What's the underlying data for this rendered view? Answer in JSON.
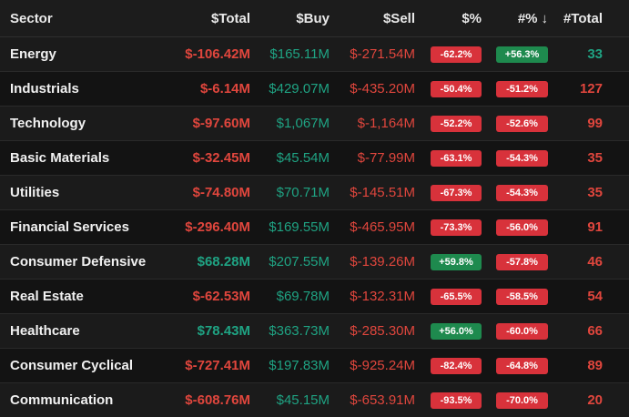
{
  "colors": {
    "negative": "#e0463d",
    "positive": "#1fa383",
    "pill_negative": "#d8323b",
    "pill_positive": "#1e8a4e",
    "header_bg": "#1c1c1c",
    "row_bg": "#1b1b1b",
    "page_bg": "#131313"
  },
  "header": {
    "sector": "Sector",
    "total": "$Total",
    "buy": "$Buy",
    "sell": "$Sell",
    "pct": "$%",
    "count_pct": "#%",
    "sort_icon": "↓",
    "count": "#Total"
  },
  "rows": [
    {
      "sector": "Energy",
      "total": "$-106.42M",
      "total_sign": "neg",
      "buy": "$165.11M",
      "sell": "$-271.54M",
      "pct": "-62.2%",
      "pct_sign": "neg",
      "count_pct": "+56.3%",
      "count_pct_sign": "pos",
      "count": "33",
      "count_sign": "pos"
    },
    {
      "sector": "Industrials",
      "total": "$-6.14M",
      "total_sign": "neg",
      "buy": "$429.07M",
      "sell": "$-435.20M",
      "pct": "-50.4%",
      "pct_sign": "neg",
      "count_pct": "-51.2%",
      "count_pct_sign": "neg",
      "count": "127",
      "count_sign": "neg"
    },
    {
      "sector": "Technology",
      "total": "$-97.60M",
      "total_sign": "neg",
      "buy": "$1,067M",
      "sell": "$-1,164M",
      "pct": "-52.2%",
      "pct_sign": "neg",
      "count_pct": "-52.6%",
      "count_pct_sign": "neg",
      "count": "99",
      "count_sign": "neg"
    },
    {
      "sector": "Basic Materials",
      "total": "$-32.45M",
      "total_sign": "neg",
      "buy": "$45.54M",
      "sell": "$-77.99M",
      "pct": "-63.1%",
      "pct_sign": "neg",
      "count_pct": "-54.3%",
      "count_pct_sign": "neg",
      "count": "35",
      "count_sign": "neg"
    },
    {
      "sector": "Utilities",
      "total": "$-74.80M",
      "total_sign": "neg",
      "buy": "$70.71M",
      "sell": "$-145.51M",
      "pct": "-67.3%",
      "pct_sign": "neg",
      "count_pct": "-54.3%",
      "count_pct_sign": "neg",
      "count": "35",
      "count_sign": "neg"
    },
    {
      "sector": "Financial Services",
      "total": "$-296.40M",
      "total_sign": "neg",
      "buy": "$169.55M",
      "sell": "$-465.95M",
      "pct": "-73.3%",
      "pct_sign": "neg",
      "count_pct": "-56.0%",
      "count_pct_sign": "neg",
      "count": "91",
      "count_sign": "neg"
    },
    {
      "sector": "Consumer Defensive",
      "total": "$68.28M",
      "total_sign": "pos",
      "buy": "$207.55M",
      "sell": "$-139.26M",
      "pct": "+59.8%",
      "pct_sign": "pos",
      "count_pct": "-57.8%",
      "count_pct_sign": "neg",
      "count": "46",
      "count_sign": "neg"
    },
    {
      "sector": "Real Estate",
      "total": "$-62.53M",
      "total_sign": "neg",
      "buy": "$69.78M",
      "sell": "$-132.31M",
      "pct": "-65.5%",
      "pct_sign": "neg",
      "count_pct": "-58.5%",
      "count_pct_sign": "neg",
      "count": "54",
      "count_sign": "neg"
    },
    {
      "sector": "Healthcare",
      "total": "$78.43M",
      "total_sign": "pos",
      "buy": "$363.73M",
      "sell": "$-285.30M",
      "pct": "+56.0%",
      "pct_sign": "pos",
      "count_pct": "-60.0%",
      "count_pct_sign": "neg",
      "count": "66",
      "count_sign": "neg"
    },
    {
      "sector": "Consumer Cyclical",
      "total": "$-727.41M",
      "total_sign": "neg",
      "buy": "$197.83M",
      "sell": "$-925.24M",
      "pct": "-82.4%",
      "pct_sign": "neg",
      "count_pct": "-64.8%",
      "count_pct_sign": "neg",
      "count": "89",
      "count_sign": "neg"
    },
    {
      "sector": "Communication",
      "total": "$-608.76M",
      "total_sign": "neg",
      "buy": "$45.15M",
      "sell": "$-653.91M",
      "pct": "-93.5%",
      "pct_sign": "neg",
      "count_pct": "-70.0%",
      "count_pct_sign": "neg",
      "count": "20",
      "count_sign": "neg"
    }
  ]
}
